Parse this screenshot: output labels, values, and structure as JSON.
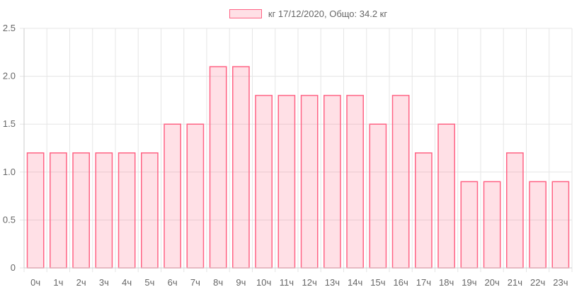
{
  "chart_data": {
    "type": "bar",
    "legend": [
      "кг 17/12/2020, Общо: 34.2 кг"
    ],
    "categories": [
      "0ч",
      "1ч",
      "2ч",
      "3ч",
      "4ч",
      "5ч",
      "6ч",
      "7ч",
      "8ч",
      "9ч",
      "10ч",
      "11ч",
      "12ч",
      "13ч",
      "14ч",
      "15ч",
      "16ч",
      "17ч",
      "18ч",
      "19ч",
      "20ч",
      "21ч",
      "22ч",
      "23ч"
    ],
    "series": [
      {
        "name": "кг 17/12/2020, Общо: 34.2 кг",
        "values": [
          1.2,
          1.2,
          1.2,
          1.2,
          1.2,
          1.2,
          1.5,
          1.5,
          2.1,
          2.1,
          1.8,
          1.8,
          1.8,
          1.8,
          1.8,
          1.5,
          1.8,
          1.2,
          1.5,
          0.9,
          0.9,
          1.2,
          0.9,
          0.9
        ]
      }
    ],
    "ylim": [
      0,
      2.5
    ],
    "yticks": [
      "0",
      "0.5",
      "1.0",
      "1.5",
      "2.0",
      "2.5"
    ],
    "grid": true,
    "legend_position": "top-center",
    "colors": {
      "bar_fill": "#ff638433",
      "bar_border": "#ff6384",
      "grid": "#e5e5e5",
      "text": "#666666"
    }
  }
}
